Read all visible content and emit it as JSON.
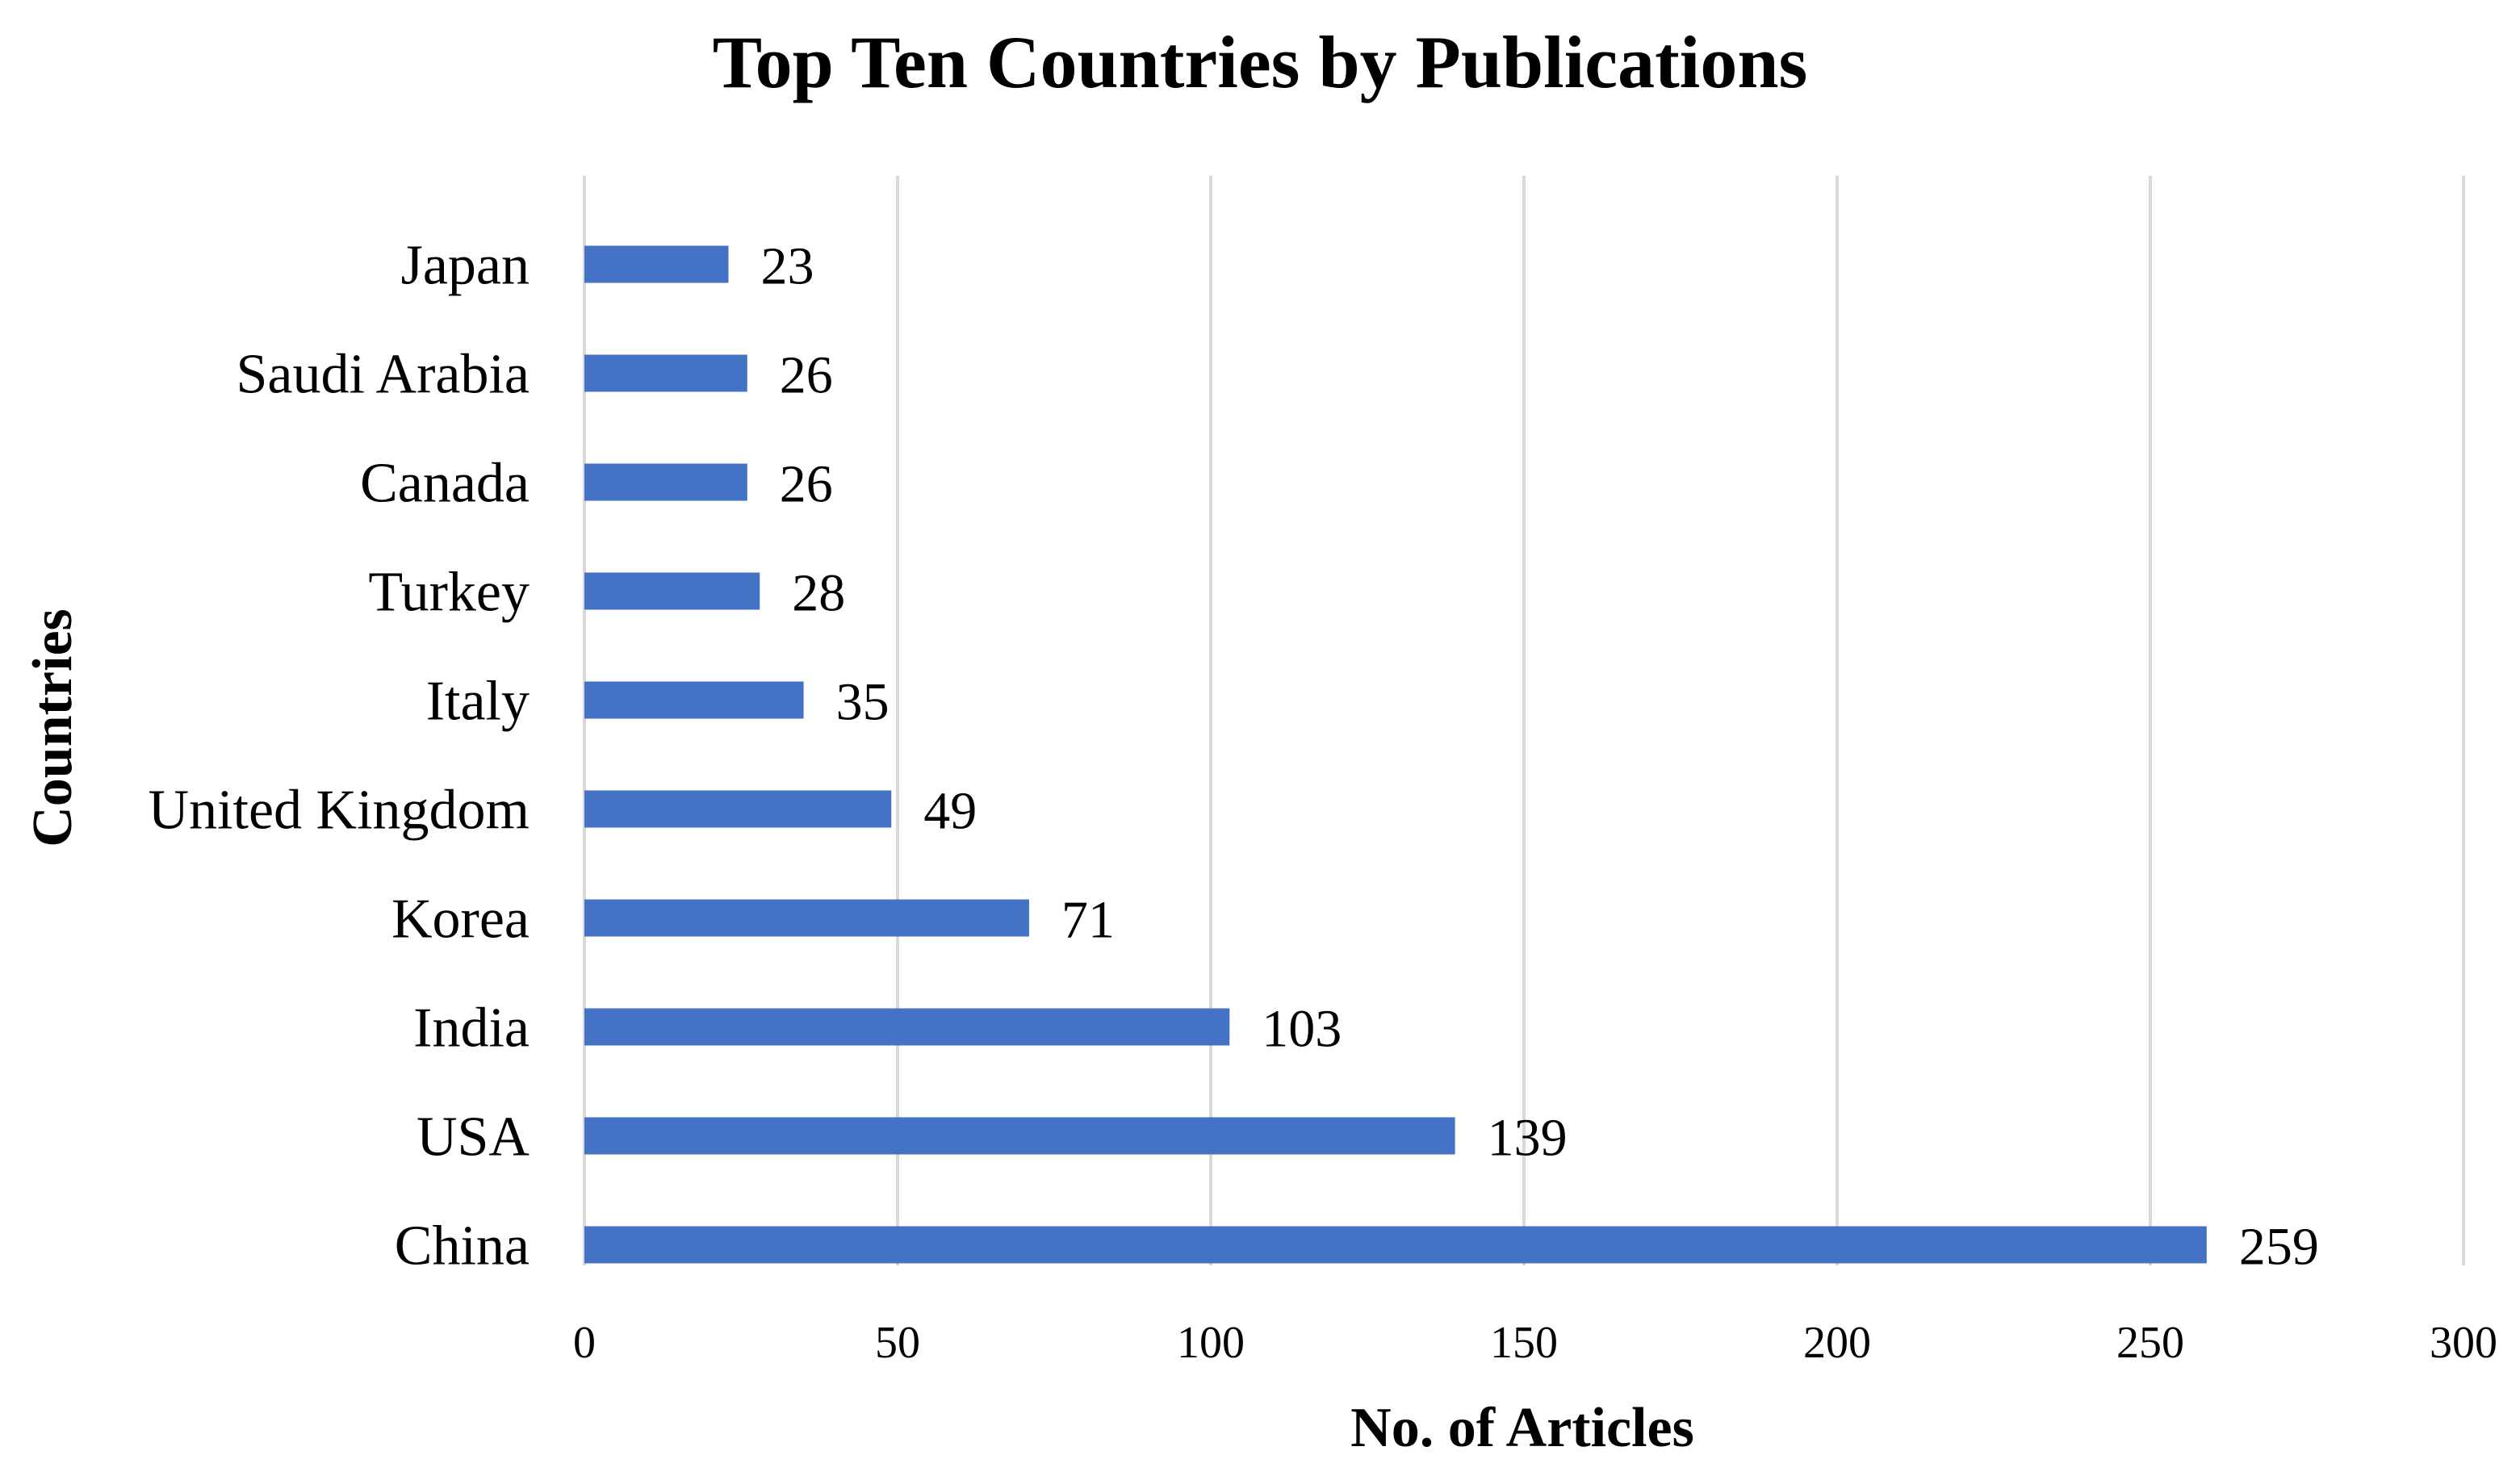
{
  "chart_data": {
    "type": "bar",
    "orientation": "horizontal",
    "title": "Top Ten Countries by Publications",
    "xlabel": "No. of Articles",
    "ylabel": "Countries",
    "categories": [
      "China",
      "USA",
      "India",
      "Korea",
      "United Kingdom",
      "Italy",
      "Turkey",
      "Canada",
      "Saudi Arabia",
      "Japan"
    ],
    "values": [
      259,
      139,
      103,
      71,
      49,
      35,
      28,
      26,
      26,
      23
    ],
    "xlim": [
      0,
      300
    ],
    "xticks": [
      0,
      50,
      100,
      150,
      200,
      250,
      300
    ],
    "grid": true,
    "legend": "none",
    "bar_color": "#4472c4"
  }
}
